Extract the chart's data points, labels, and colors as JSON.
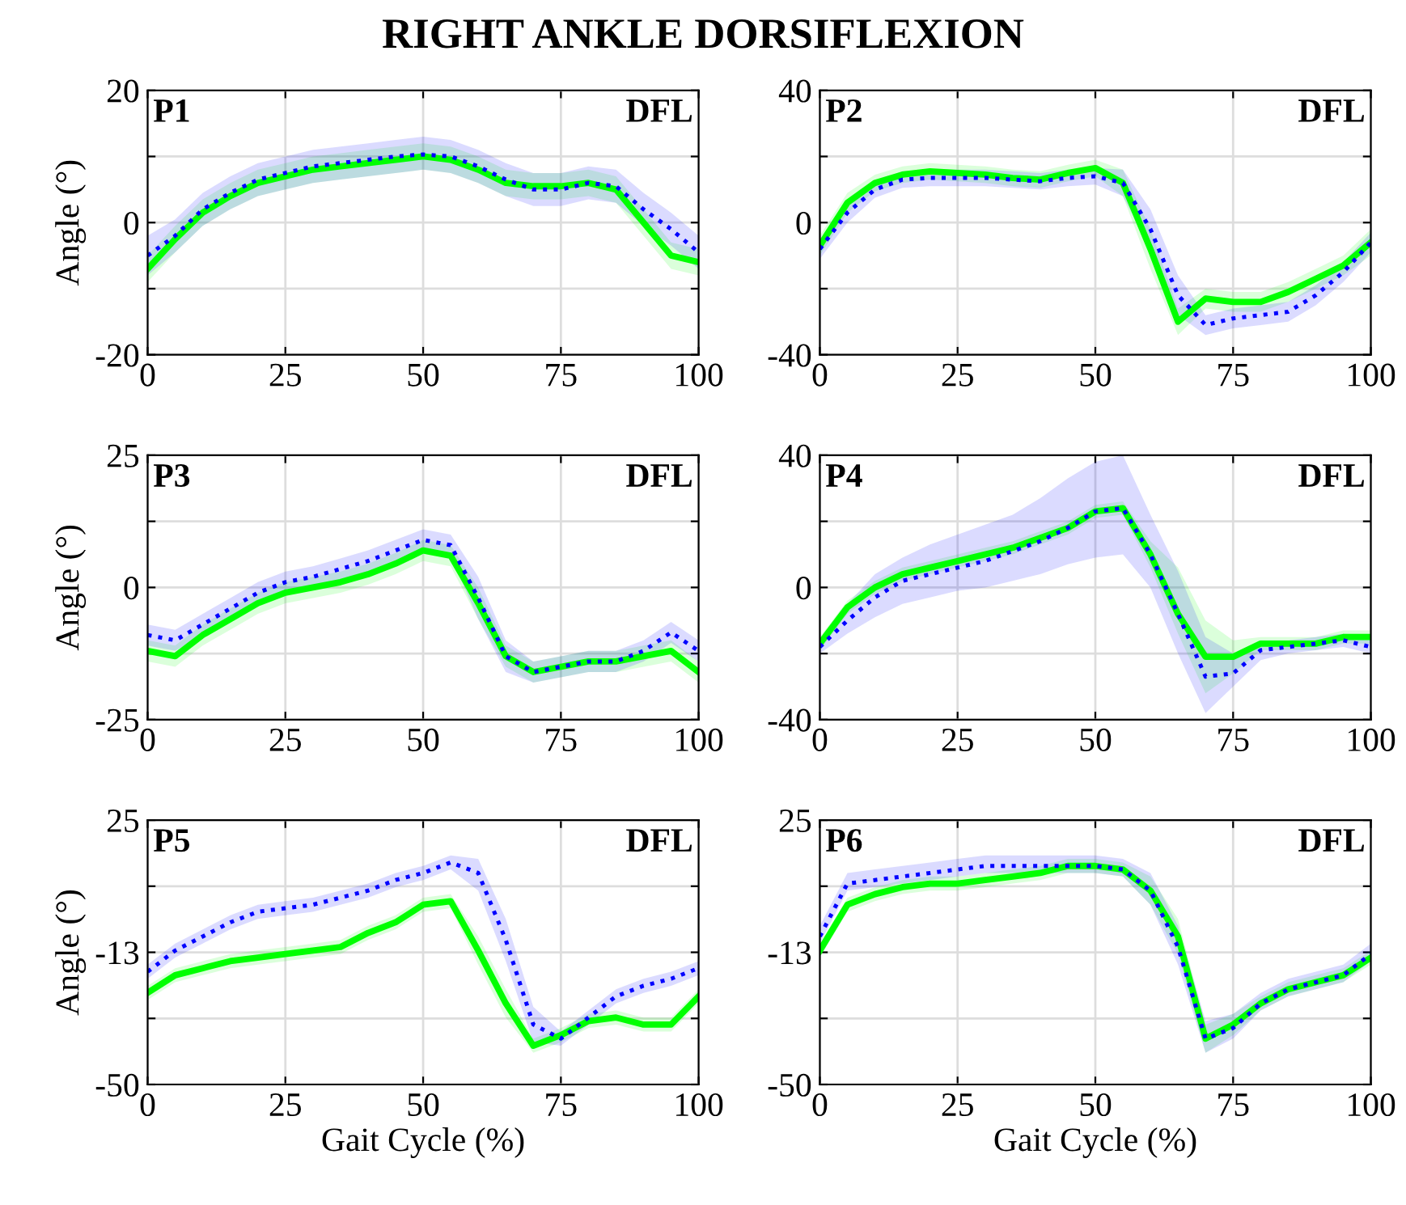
{
  "chart_data": [
    {
      "type": "line",
      "title": "RIGHT ANKLE DORSIFLEXION",
      "ylabel": "Angle (°)",
      "annotations": [
        "P1",
        "DFL"
      ],
      "grid": true,
      "xlim": [
        0,
        100
      ],
      "xticks": [
        0,
        25,
        50,
        75,
        100
      ],
      "ylim": [
        -20,
        20
      ],
      "yticks": [
        -20,
        {
          "value": -10,
          "label": null
        },
        0,
        {
          "value": 10,
          "label": null
        },
        20
      ],
      "x": [
        0,
        5,
        10,
        15,
        20,
        25,
        30,
        35,
        40,
        45,
        50,
        55,
        60,
        65,
        70,
        75,
        80,
        85,
        90,
        95,
        100
      ],
      "series": [
        {
          "color": "#00ff00",
          "line_style": "solid",
          "values": [
            -7,
            -2.5,
            1.5,
            4,
            6,
            7,
            8,
            8.5,
            9,
            9.5,
            10,
            9.5,
            8,
            6,
            5.5,
            5.5,
            6,
            5,
            0,
            -5,
            -6
          ],
          "lower": [
            -9,
            -4.5,
            -0.5,
            2,
            4,
            5,
            6,
            6.5,
            7,
            7.5,
            8,
            7.5,
            6,
            4,
            3.5,
            3.5,
            4,
            3,
            -2,
            -7,
            -8
          ],
          "upper": [
            -5,
            -0.5,
            3.5,
            6,
            8,
            9,
            10,
            10.5,
            11,
            11.5,
            12,
            11.5,
            10,
            8,
            7.5,
            7.5,
            8,
            7,
            2,
            -3,
            -4
          ]
        },
        {
          "color": "#0000ff",
          "line_style": "dotted",
          "values": [
            -5,
            -2,
            2,
            4.5,
            6.5,
            7.5,
            8.5,
            9,
            9.5,
            10,
            10.3,
            10,
            8.5,
            6.5,
            5,
            5,
            6,
            5.5,
            2,
            -1,
            -4.5
          ],
          "lower": [
            -8,
            -4.5,
            -0.5,
            2,
            4,
            5,
            6,
            6.5,
            7,
            7.5,
            8,
            7.5,
            6,
            4,
            2.5,
            2.5,
            3.5,
            3,
            -0.5,
            -3.5,
            -7
          ],
          "upper": [
            -2,
            0.5,
            4.5,
            7,
            9,
            10,
            11,
            11.5,
            12,
            12.5,
            13,
            12.5,
            11,
            9,
            7.5,
            7.5,
            8.5,
            8,
            4.5,
            1.5,
            -2
          ]
        }
      ]
    },
    {
      "type": "line",
      "annotations": [
        "P2",
        "DFL"
      ],
      "grid": true,
      "xlim": [
        0,
        100
      ],
      "xticks": [
        0,
        25,
        50,
        75,
        100
      ],
      "ylim": [
        -40,
        40
      ],
      "yticks": [
        -40,
        {
          "value": -20,
          "label": null
        },
        0,
        {
          "value": 20,
          "label": null
        },
        40
      ],
      "x": [
        0,
        5,
        10,
        15,
        20,
        25,
        30,
        35,
        40,
        45,
        50,
        55,
        60,
        65,
        70,
        75,
        80,
        85,
        90,
        95,
        100
      ],
      "series": [
        {
          "color": "#00ff00",
          "line_style": "solid",
          "values": [
            -7,
            6,
            12,
            14.5,
            15.5,
            15,
            14.5,
            13.5,
            13,
            15,
            16.5,
            12,
            -8,
            -30,
            -23,
            -24,
            -24,
            -21,
            -17,
            -13,
            -6
          ],
          "lower": [
            -10,
            3,
            9.5,
            12,
            13,
            12.5,
            12,
            11,
            10.5,
            12.5,
            14,
            8,
            -14,
            -34,
            -26,
            -27,
            -27,
            -24,
            -20,
            -16,
            -10
          ],
          "upper": [
            -4,
            9,
            14.5,
            17,
            18,
            17.5,
            17,
            16,
            15.5,
            17.5,
            19,
            16,
            -2,
            -26,
            -20,
            -21,
            -21,
            -18,
            -14,
            -10,
            -2
          ]
        },
        {
          "color": "#0000ff",
          "line_style": "dotted",
          "values": [
            -8,
            3,
            10,
            13,
            13.5,
            13.5,
            13.5,
            13,
            12.5,
            13.5,
            14,
            12,
            -2,
            -22,
            -31,
            -29,
            -28,
            -27,
            -22,
            -15,
            -6
          ],
          "lower": [
            -11,
            0,
            7.5,
            10.5,
            11,
            11,
            11,
            10.5,
            10,
            11,
            11.5,
            8,
            -8,
            -28,
            -34,
            -32,
            -31,
            -30,
            -25,
            -18,
            -9
          ],
          "upper": [
            -5,
            6,
            12.5,
            15.5,
            16,
            16,
            16,
            15.5,
            15,
            16,
            16.5,
            16,
            4,
            -16,
            -28,
            -26,
            -25,
            -24,
            -19,
            -12,
            -3
          ]
        }
      ]
    },
    {
      "type": "line",
      "ylabel": "Angle (°)",
      "annotations": [
        "P3",
        "DFL"
      ],
      "grid": true,
      "xlim": [
        0,
        100
      ],
      "xticks": [
        0,
        25,
        50,
        75,
        100
      ],
      "ylim": [
        -25,
        25
      ],
      "yticks": [
        -25,
        {
          "value": -12.5,
          "label": null
        },
        0,
        {
          "value": 12.5,
          "label": null
        },
        25
      ],
      "x": [
        0,
        5,
        10,
        15,
        20,
        25,
        30,
        35,
        40,
        45,
        50,
        55,
        60,
        65,
        70,
        75,
        80,
        85,
        90,
        95,
        100
      ],
      "series": [
        {
          "color": "#00ff00",
          "line_style": "solid",
          "values": [
            -12,
            -13,
            -9,
            -6,
            -3,
            -1,
            0,
            1,
            2.5,
            4.5,
            7,
            6,
            -3,
            -13,
            -16,
            -15,
            -14,
            -14,
            -13,
            -12,
            -16
          ],
          "lower": [
            -14,
            -15,
            -11,
            -8,
            -5,
            -3,
            -2,
            -1,
            0.5,
            2.5,
            5,
            4,
            -6,
            -15,
            -18,
            -17,
            -16,
            -16,
            -15,
            -14,
            -18
          ],
          "upper": [
            -10,
            -11,
            -7,
            -4,
            -1,
            1,
            2,
            3,
            4.5,
            6.5,
            9,
            8,
            0,
            -11,
            -14,
            -13,
            -12,
            -12,
            -11,
            -10,
            -14
          ]
        },
        {
          "color": "#0000ff",
          "line_style": "dotted",
          "values": [
            -9,
            -10,
            -7,
            -4,
            -1,
            1,
            2,
            3.5,
            5,
            7,
            9,
            8,
            -2,
            -13,
            -16,
            -15,
            -14,
            -14,
            -12,
            -8.5,
            -12
          ],
          "lower": [
            -11,
            -12,
            -9,
            -6,
            -3,
            -1,
            0,
            1.5,
            3,
            5,
            7,
            6,
            -6,
            -16,
            -18,
            -17,
            -16,
            -16,
            -14,
            -10.5,
            -14
          ],
          "upper": [
            -7,
            -8,
            -5,
            -2,
            1,
            3,
            4,
            5.5,
            7,
            9,
            11,
            10,
            2,
            -10,
            -14,
            -13,
            -12,
            -12,
            -10,
            -6.5,
            -10
          ]
        }
      ]
    },
    {
      "type": "line",
      "annotations": [
        "P4",
        "DFL"
      ],
      "grid": true,
      "xlim": [
        0,
        100
      ],
      "xticks": [
        0,
        25,
        50,
        75,
        100
      ],
      "ylim": [
        -40,
        40
      ],
      "yticks": [
        -40,
        {
          "value": -20,
          "label": null
        },
        0,
        {
          "value": 20,
          "label": null
        },
        40
      ],
      "x": [
        0,
        5,
        10,
        15,
        20,
        25,
        30,
        35,
        40,
        45,
        50,
        55,
        60,
        65,
        70,
        75,
        80,
        85,
        90,
        95,
        100
      ],
      "series": [
        {
          "color": "#00ff00",
          "line_style": "solid",
          "values": [
            -17,
            -6,
            0,
            4,
            6,
            8,
            10,
            12,
            15,
            18,
            23,
            24,
            10,
            -8,
            -21,
            -21,
            -17,
            -17,
            -17,
            -15,
            -15
          ],
          "lower": [
            -19,
            -8,
            -2,
            2,
            4,
            6,
            8,
            10,
            13,
            16,
            21,
            22,
            6,
            -14,
            -32,
            -26,
            -19,
            -19,
            -19,
            -17,
            -17
          ],
          "upper": [
            -15,
            -4,
            2,
            6,
            8,
            10,
            12,
            14,
            17,
            20,
            25,
            26,
            14,
            6,
            -10,
            -16,
            -15,
            -15,
            -15,
            -13,
            -13
          ]
        },
        {
          "color": "#0000ff",
          "line_style": "dotted",
          "values": [
            -18,
            -10,
            -3,
            2,
            4,
            6,
            8,
            11,
            14,
            18,
            23,
            24,
            10,
            -8,
            -27,
            -26,
            -19,
            -18,
            -17,
            -16,
            -18
          ],
          "lower": [
            -20,
            -14,
            -9,
            -5,
            -3,
            -1,
            0,
            2,
            4,
            7,
            9,
            10,
            0,
            -20,
            -38,
            -30,
            -22,
            -20,
            -19,
            -18,
            -20
          ],
          "upper": [
            -16,
            -5,
            4,
            9,
            13,
            16,
            19,
            22,
            27,
            33,
            38,
            40,
            22,
            5,
            -15,
            -20,
            -16,
            -16,
            -15,
            -14,
            -16
          ]
        }
      ]
    },
    {
      "type": "line",
      "ylabel": "Angle (°)",
      "xlabel": "Gait Cycle (%)",
      "annotations": [
        "P5",
        "DFL"
      ],
      "grid": true,
      "xlim": [
        0,
        100
      ],
      "xticks": [
        0,
        25,
        50,
        75,
        100
      ],
      "ylim": [
        -50,
        25
      ],
      "yticks": [
        -50,
        {
          "value": -31.25,
          "label": null
        },
        {
          "value": -12.5,
          "label": "-13"
        },
        {
          "value": 6.25,
          "label": null
        },
        25
      ],
      "x": [
        0,
        5,
        10,
        15,
        20,
        25,
        30,
        35,
        40,
        45,
        50,
        55,
        60,
        65,
        70,
        75,
        80,
        85,
        90,
        95,
        100
      ],
      "series": [
        {
          "color": "#00ff00",
          "line_style": "solid",
          "values": [
            -24,
            -19,
            -17,
            -15,
            -14,
            -13,
            -12,
            -11,
            -7,
            -4,
            1,
            2,
            -12,
            -27,
            -39,
            -36,
            -32,
            -31,
            -33,
            -33,
            -25
          ],
          "lower": [
            -26,
            -21,
            -19,
            -17,
            -16,
            -15,
            -14,
            -13,
            -9,
            -6,
            -1,
            0,
            -16,
            -31,
            -41,
            -38,
            -34,
            -33,
            -35,
            -35,
            -27
          ],
          "upper": [
            -22,
            -17,
            -15,
            -13,
            -12,
            -11,
            -10,
            -9,
            -5,
            -2,
            3,
            4,
            -8,
            -23,
            -37,
            -34,
            -30,
            -29,
            -31,
            -31,
            -23
          ]
        },
        {
          "color": "#0000ff",
          "line_style": "dotted",
          "values": [
            -18,
            -12,
            -8,
            -4,
            -1,
            0,
            1,
            3,
            5,
            8,
            10,
            13,
            10,
            -9,
            -33,
            -37,
            -31,
            -25,
            -22,
            -20,
            -17
          ],
          "lower": [
            -20,
            -14,
            -10,
            -6,
            -3,
            -2,
            -1,
            1,
            3,
            6,
            8,
            11,
            5,
            -15,
            -38,
            -39,
            -33,
            -27,
            -24,
            -22,
            -19
          ],
          "upper": [
            -16,
            -10,
            -6,
            -2,
            1,
            2,
            3,
            5,
            7,
            10,
            12,
            15,
            14,
            -3,
            -28,
            -35,
            -29,
            -23,
            -20,
            -18,
            -15
          ]
        }
      ]
    },
    {
      "type": "line",
      "xlabel": "Gait Cycle (%)",
      "annotations": [
        "P6",
        "DFL"
      ],
      "grid": true,
      "xlim": [
        0,
        100
      ],
      "xticks": [
        0,
        25,
        50,
        75,
        100
      ],
      "ylim": [
        -50,
        25
      ],
      "yticks": [
        -50,
        {
          "value": -31.25,
          "label": null
        },
        {
          "value": -12.5,
          "label": "-13"
        },
        {
          "value": 6.25,
          "label": null
        },
        25
      ],
      "x": [
        0,
        5,
        10,
        15,
        20,
        25,
        30,
        35,
        40,
        45,
        50,
        55,
        60,
        65,
        70,
        75,
        80,
        85,
        90,
        95,
        100
      ],
      "series": [
        {
          "color": "#00ff00",
          "line_style": "solid",
          "values": [
            -12,
            1,
            4,
            6,
            7,
            7,
            8,
            9,
            10,
            12,
            12,
            11,
            5,
            -8,
            -37,
            -33,
            -27,
            -23,
            -21,
            -19,
            -14
          ],
          "lower": [
            -14,
            -1,
            2,
            4,
            5,
            5,
            6,
            7,
            8,
            10,
            10,
            9,
            1,
            -13,
            -41,
            -36,
            -29,
            -25,
            -23,
            -21,
            -16
          ],
          "upper": [
            -10,
            3,
            6,
            8,
            9,
            9,
            10,
            11,
            12,
            14,
            14,
            13,
            9,
            -3,
            -33,
            -30,
            -25,
            -21,
            -19,
            -17,
            -12
          ]
        },
        {
          "color": "#0000ff",
          "line_style": "dotted",
          "values": [
            -8,
            7,
            8,
            9,
            10,
            11,
            12,
            12,
            12,
            12,
            12,
            11,
            5,
            -11,
            -37,
            -34,
            -27,
            -23,
            -21,
            -19,
            -13
          ],
          "lower": [
            -10,
            5,
            6,
            7,
            8,
            9,
            10,
            10,
            10,
            10,
            10,
            9,
            1,
            -16,
            -41,
            -37,
            -29,
            -25,
            -23,
            -21,
            -15
          ],
          "upper": [
            -5,
            10,
            11,
            12,
            13,
            14,
            15,
            15,
            15,
            15,
            15,
            14,
            10,
            -5,
            -32,
            -30,
            -24,
            -20,
            -18,
            -16,
            -10
          ]
        }
      ]
    }
  ]
}
